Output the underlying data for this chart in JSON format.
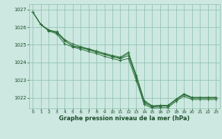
{
  "title": "Graphe pression niveau de la mer (hPa)",
  "background_color": "#cce8e0",
  "grid_color": "#88bbaa",
  "line_color": "#2d6e3a",
  "text_color": "#1a4a28",
  "xlim": [
    -0.5,
    23.5
  ],
  "ylim": [
    1021.4,
    1027.3
  ],
  "yticks": [
    1022,
    1023,
    1024,
    1025,
    1026,
    1027
  ],
  "xticks": [
    0,
    1,
    2,
    3,
    4,
    5,
    6,
    7,
    8,
    9,
    10,
    11,
    12,
    13,
    14,
    15,
    16,
    17,
    18,
    19,
    20,
    21,
    22,
    23
  ],
  "series": [
    [
      1026.85,
      1026.15,
      1025.85,
      1025.72,
      1025.25,
      1024.92,
      1024.82,
      1024.72,
      1024.58,
      1024.45,
      1024.32,
      1024.22,
      1024.38,
      1023.15,
      1021.72,
      1021.48,
      1021.53,
      1021.53,
      1021.88,
      1022.18,
      1021.98,
      1021.98,
      1021.98,
      1021.98
    ],
    [
      1026.85,
      1026.15,
      1025.82,
      1025.68,
      1025.22,
      1024.95,
      1024.85,
      1024.75,
      1024.6,
      1024.47,
      1024.35,
      1024.25,
      1024.5,
      1023.22,
      1021.78,
      1021.52,
      1021.55,
      1021.55,
      1021.9,
      1022.2,
      1022.0,
      1022.0,
      1022.0,
      1022.0
    ],
    [
      1026.85,
      1026.15,
      1025.8,
      1025.75,
      1025.3,
      1025.05,
      1024.9,
      1024.78,
      1024.65,
      1024.52,
      1024.4,
      1024.3,
      1024.58,
      1023.3,
      1021.85,
      1021.55,
      1021.58,
      1021.58,
      1021.93,
      1022.23,
      1022.03,
      1022.03,
      1022.03,
      1022.03
    ],
    [
      1026.85,
      1026.15,
      1025.78,
      1025.62,
      1025.05,
      1024.88,
      1024.75,
      1024.62,
      1024.5,
      1024.35,
      1024.22,
      1024.12,
      1024.22,
      1022.98,
      1021.62,
      1021.42,
      1021.45,
      1021.45,
      1021.8,
      1022.1,
      1021.9,
      1021.9,
      1021.9,
      1021.9
    ]
  ]
}
